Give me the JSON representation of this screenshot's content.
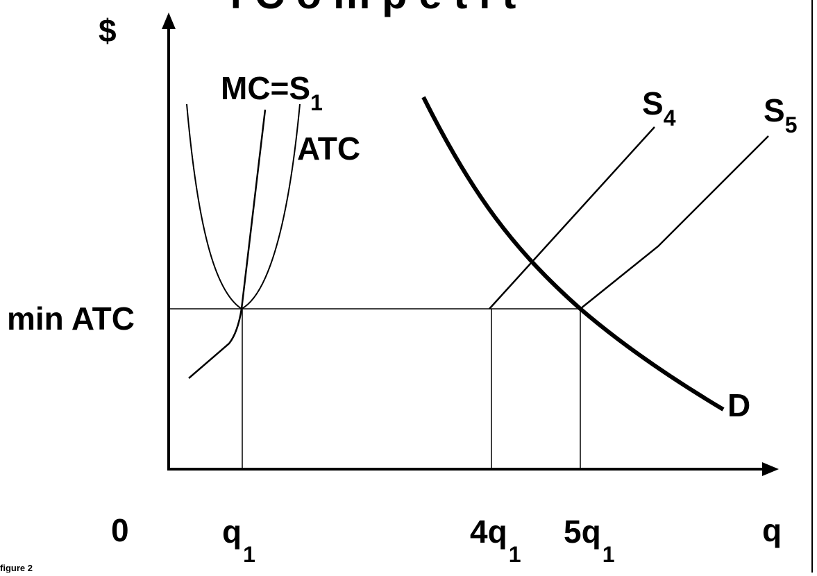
{
  "title_fragment": "f  C  o  m  p  e  t  i  t",
  "y_axis": {
    "label": "$",
    "ref_label": "min ATC"
  },
  "x_axis": {
    "label": "q",
    "origin": "0",
    "ticks": [
      {
        "main": "q",
        "sub": "1"
      },
      {
        "main": "4q",
        "sub": "1"
      },
      {
        "main": "5q",
        "sub": "1"
      }
    ]
  },
  "curves": {
    "mc": {
      "main": "MC=S",
      "sub": "1"
    },
    "atc": {
      "main": "ATC"
    },
    "s4": {
      "main": "S",
      "sub": "4"
    },
    "s5": {
      "main": "S",
      "sub": "5"
    },
    "demand": {
      "main": "D"
    }
  },
  "caption": "figure 2"
}
